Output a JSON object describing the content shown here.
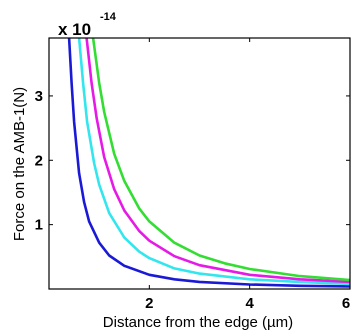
{
  "chart_data": {
    "type": "line",
    "xlabel": "Distance from the edge (µm)",
    "ylabel": "Force on the AMB-1(N)",
    "exponent_base": "x 10",
    "exponent_power": "-14",
    "xlim": [
      0,
      6
    ],
    "ylim": [
      0,
      3.9
    ],
    "xticks": [
      2,
      4,
      6
    ],
    "yticks": [
      1,
      2,
      3
    ],
    "grid": false,
    "series": [
      {
        "color": "#1a1ad6",
        "points": [
          [
            0.4,
            3.9
          ],
          [
            0.45,
            3.2
          ],
          [
            0.5,
            2.6
          ],
          [
            0.6,
            1.8
          ],
          [
            0.7,
            1.35
          ],
          [
            0.8,
            1.05
          ],
          [
            1.0,
            0.72
          ],
          [
            1.2,
            0.52
          ],
          [
            1.5,
            0.36
          ],
          [
            2.0,
            0.22
          ],
          [
            2.5,
            0.15
          ],
          [
            3.0,
            0.11
          ],
          [
            4.0,
            0.07
          ],
          [
            5.0,
            0.05
          ],
          [
            6.0,
            0.04
          ]
        ]
      },
      {
        "color": "#33e6ee",
        "points": [
          [
            0.6,
            3.9
          ],
          [
            0.68,
            3.2
          ],
          [
            0.76,
            2.6
          ],
          [
            0.9,
            1.95
          ],
          [
            1.0,
            1.62
          ],
          [
            1.2,
            1.18
          ],
          [
            1.5,
            0.8
          ],
          [
            1.8,
            0.58
          ],
          [
            2.0,
            0.48
          ],
          [
            2.5,
            0.32
          ],
          [
            3.0,
            0.24
          ],
          [
            4.0,
            0.15
          ],
          [
            5.0,
            0.11
          ],
          [
            6.0,
            0.08
          ]
        ]
      },
      {
        "color": "#e61ae6",
        "points": [
          [
            0.75,
            3.9
          ],
          [
            0.85,
            3.2
          ],
          [
            0.95,
            2.65
          ],
          [
            1.1,
            2.05
          ],
          [
            1.3,
            1.55
          ],
          [
            1.5,
            1.22
          ],
          [
            1.8,
            0.9
          ],
          [
            2.0,
            0.75
          ],
          [
            2.5,
            0.51
          ],
          [
            3.0,
            0.37
          ],
          [
            4.0,
            0.22
          ],
          [
            5.0,
            0.15
          ],
          [
            6.0,
            0.11
          ]
        ]
      },
      {
        "color": "#33dd33",
        "points": [
          [
            0.88,
            3.9
          ],
          [
            1.0,
            3.2
          ],
          [
            1.1,
            2.75
          ],
          [
            1.3,
            2.1
          ],
          [
            1.5,
            1.68
          ],
          [
            1.8,
            1.25
          ],
          [
            2.0,
            1.05
          ],
          [
            2.5,
            0.72
          ],
          [
            3.0,
            0.52
          ],
          [
            3.5,
            0.4
          ],
          [
            4.0,
            0.31
          ],
          [
            5.0,
            0.2
          ],
          [
            6.0,
            0.14
          ]
        ]
      }
    ]
  }
}
